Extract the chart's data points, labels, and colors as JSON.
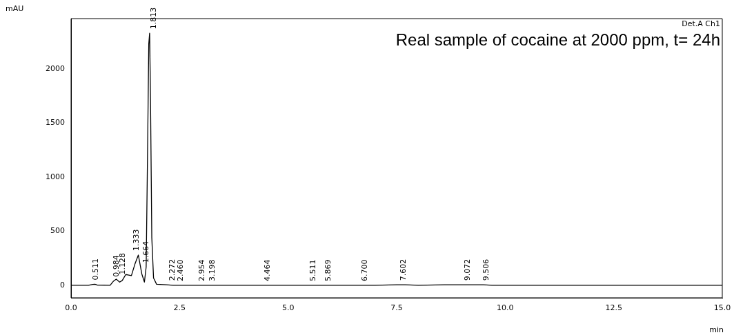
{
  "chart_data": {
    "type": "line",
    "xlabel": "min",
    "ylabel": "mAU",
    "x": [
      0,
      0.4,
      0.5,
      0.55,
      0.6,
      0.9,
      0.98,
      1.04,
      1.12,
      1.18,
      1.26,
      1.33,
      1.39,
      1.47,
      1.55,
      1.63,
      1.69,
      1.73,
      1.76,
      1.79,
      1.81,
      1.83,
      1.86,
      1.9,
      1.97,
      2.2,
      2.35,
      2.5,
      3.0,
      4.0,
      5.0,
      6.0,
      7.0,
      7.5,
      7.7,
      8.0,
      8.6,
      9.0,
      9.5,
      9.7,
      10.0,
      12.5,
      15.0
    ],
    "series": [
      {
        "color": "#000000",
        "values": [
          0,
          0,
          8,
          10,
          3,
          0,
          40,
          57,
          30,
          45,
          100,
          95,
          90,
          195,
          280,
          105,
          30,
          170,
          1150,
          2230,
          2330,
          1724,
          440,
          68,
          10,
          5,
          0,
          0,
          0,
          0,
          0,
          0,
          0,
          5,
          5,
          0,
          5,
          5,
          5,
          0,
          0,
          0,
          0
        ]
      }
    ],
    "xlim": [
      0,
      15
    ],
    "ylim": [
      -115,
      2465
    ],
    "xticks": [
      {
        "value": 0,
        "label": "0.0"
      },
      {
        "value": 2.5,
        "label": "2.5"
      },
      {
        "value": 5,
        "label": "5.0"
      },
      {
        "value": 7.5,
        "label": "7.5"
      },
      {
        "value": 10,
        "label": "10.0"
      },
      {
        "value": 12.5,
        "label": "12.5"
      },
      {
        "value": 15,
        "label": "15.0"
      }
    ],
    "yticks": [
      0,
      500,
      1000,
      1500,
      2000
    ],
    "grid": false,
    "legend": false,
    "marker": "none",
    "line_style": "solid",
    "annotations": [
      "Det.A Ch1",
      "Real sample of cocaine at 2000 ppm, t= 24h",
      {
        "text": "0.511",
        "x": 0.511,
        "y": 10
      },
      {
        "text": "0.984",
        "x": 0.984,
        "y": 40
      },
      {
        "text": "1.128",
        "x": 1.128,
        "y": 60
      },
      {
        "text": "1.333",
        "x": 1.45,
        "y": 280
      },
      {
        "text": "1.664",
        "x": 1.664,
        "y": 170
      },
      {
        "text": "1.813",
        "x": 1.85,
        "y": 2330
      },
      {
        "text": "2.272",
        "x": 2.272,
        "y": 5
      },
      {
        "text": "2.460",
        "x": 2.46,
        "y": 0
      },
      {
        "text": "2.954",
        "x": 2.954,
        "y": 0
      },
      {
        "text": "3.198",
        "x": 3.198,
        "y": 0
      },
      {
        "text": "4.464",
        "x": 4.464,
        "y": 0
      },
      {
        "text": "5.511",
        "x": 5.511,
        "y": 0
      },
      {
        "text": "5.869",
        "x": 5.869,
        "y": 0
      },
      {
        "text": "6.700",
        "x": 6.7,
        "y": 0
      },
      {
        "text": "7.602",
        "x": 7.602,
        "y": 5
      },
      {
        "text": "9.072",
        "x": 9.072,
        "y": 5
      },
      {
        "text": "9.506",
        "x": 9.506,
        "y": 5
      }
    ]
  }
}
